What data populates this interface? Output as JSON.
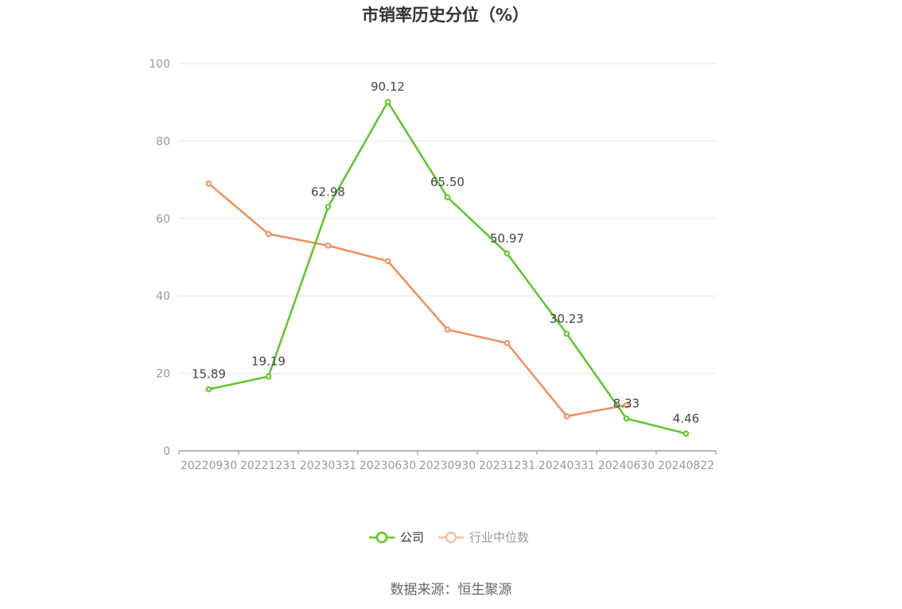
{
  "chart_data": {
    "type": "line",
    "title": "市销率历史分位（%）",
    "categories": [
      "20220930",
      "20221231",
      "20230331",
      "20230630",
      "20230930",
      "20231231",
      "20240331",
      "20240630",
      "20240822"
    ],
    "ylim": [
      0,
      100
    ],
    "yticks": [
      0,
      20,
      40,
      60,
      80,
      100
    ],
    "grid": true,
    "legend_position": "bottom",
    "series": [
      {
        "name": "公司",
        "color": "#5ec628",
        "values": [
          15.89,
          19.19,
          62.98,
          90.12,
          65.5,
          50.97,
          30.23,
          8.33,
          4.46
        ],
        "labels": [
          "15.89",
          "19.19",
          "62.98",
          "90.12",
          "65.50",
          "50.97",
          "30.23",
          "8.33",
          "4.46"
        ]
      },
      {
        "name": "行业中位数",
        "color": "#f28e5e",
        "values": [
          69.0,
          56.0,
          53.0,
          49.0,
          31.3,
          27.8,
          8.9,
          11.8,
          null
        ]
      }
    ]
  },
  "legend": {
    "company": "公司",
    "industry": "行业中位数"
  },
  "source_text": "数据来源：恒生聚源"
}
